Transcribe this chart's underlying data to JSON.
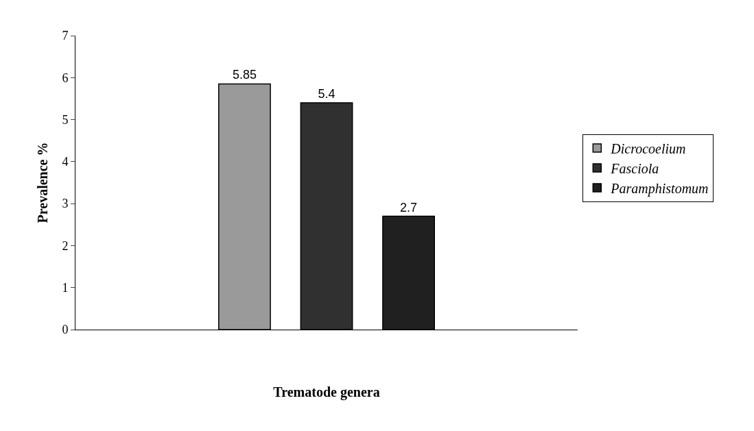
{
  "chart_data": {
    "type": "bar",
    "xlabel": "Trematode genera",
    "ylabel": "Prevalence %",
    "categories": [
      null
    ],
    "series": [
      {
        "name": "Dicrocoelium",
        "color": "#9a9a9a",
        "values": [
          5.85
        ]
      },
      {
        "name": "Fasciola",
        "color": "#303030",
        "values": [
          5.4
        ]
      },
      {
        "name": "Paramphistomum",
        "color": "#202020",
        "values": [
          2.7
        ]
      }
    ],
    "ylim": [
      0,
      7
    ],
    "yticks": [
      0,
      1,
      2,
      3,
      4,
      5,
      6,
      7
    ],
    "legend": "right",
    "data_labels": true,
    "tick_labels": "y"
  }
}
